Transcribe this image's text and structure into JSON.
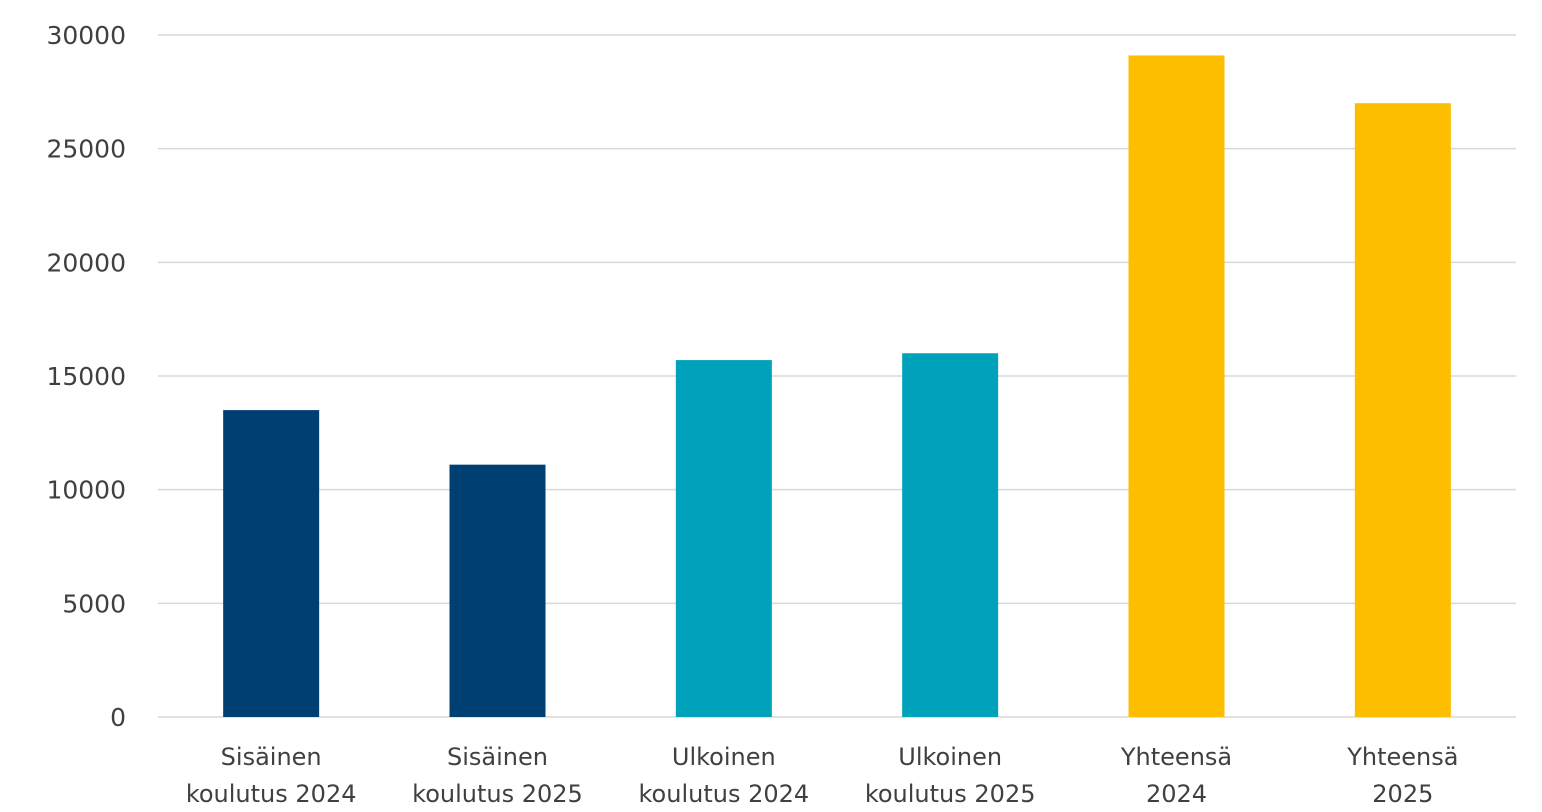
{
  "chart_data": {
    "type": "bar",
    "title": "",
    "xlabel": "",
    "ylabel": "",
    "ylim": [
      0,
      30000
    ],
    "y_ticks": [
      0,
      5000,
      10000,
      15000,
      20000,
      25000,
      30000
    ],
    "grid": true,
    "legend": "none",
    "categories": [
      [
        "Sisäinen",
        "koulutus 2024"
      ],
      [
        "Sisäinen",
        "koulutus 2025"
      ],
      [
        "Ulkoinen",
        "koulutus 2024"
      ],
      [
        "Ulkoinen",
        "koulutus 2025"
      ],
      [
        "Yhteensä",
        "2024"
      ],
      [
        "Yhteensä",
        "2025"
      ]
    ],
    "values": [
      13500,
      11100,
      15700,
      16000,
      29100,
      27000
    ],
    "bar_colors": [
      "#003f72",
      "#003f72",
      "#00a1ba",
      "#00a1ba",
      "#fdbe00",
      "#fdbe00"
    ],
    "grid_color": "#d9d9d9",
    "text_color": "#404040"
  }
}
